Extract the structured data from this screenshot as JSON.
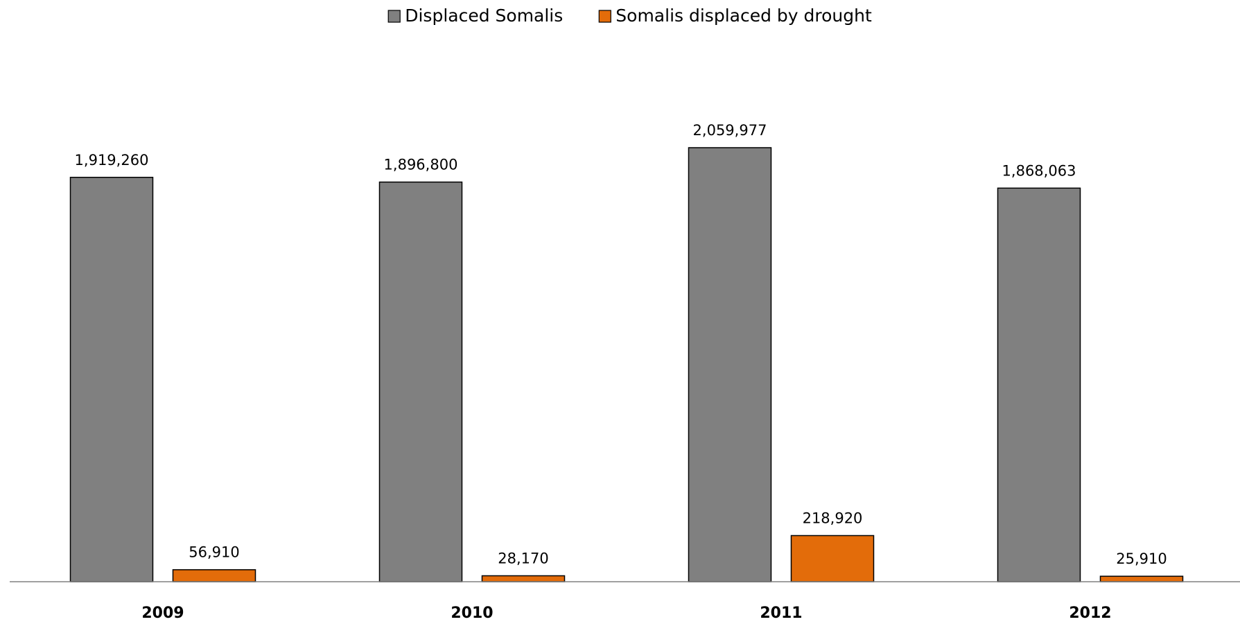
{
  "chart_data": {
    "type": "bar",
    "categories": [
      "2009",
      "2010",
      "2011",
      "2012"
    ],
    "series": [
      {
        "name": "Displaced Somalis",
        "color": "#808080",
        "values": [
          1919260,
          1896800,
          2059977,
          1868063
        ],
        "value_labels": [
          "1,919,260",
          "1,896,800",
          "2,059,977",
          "1,868,063"
        ]
      },
      {
        "name": "Somalis displaced by drought",
        "color": "#e36c0a",
        "values": [
          56910,
          28170,
          218920,
          25910
        ],
        "value_labels": [
          "56,910",
          "28,170",
          "218,920",
          "25,910"
        ]
      }
    ],
    "legend": "top"
  }
}
